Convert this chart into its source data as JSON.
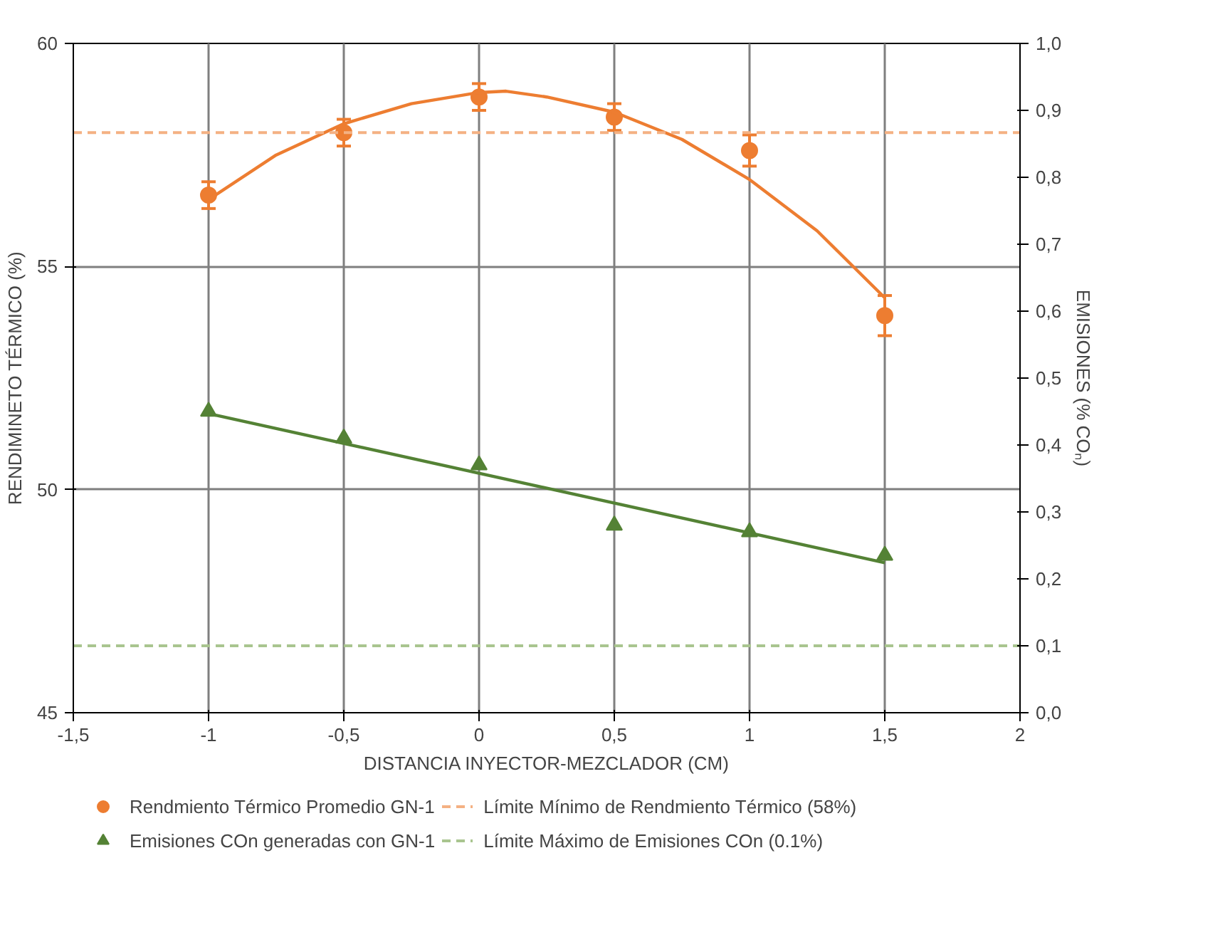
{
  "chart_data": {
    "type": "scatter",
    "xlabel": "DISTANCIA INYECTOR-MEZCLADOR (CM)",
    "ylabel": "RENDIMINETO TÉRMICO (%)",
    "y2label": "EMISIONES (% COₙ)",
    "x": [
      -1,
      -0.5,
      0,
      0.5,
      1,
      1.5
    ],
    "series": [
      {
        "name": "Rendmiento Térmico Promedio GN-1",
        "color": "#ed7d31",
        "marker": "circle",
        "values": [
          56.6,
          58.0,
          58.8,
          58.35,
          57.6,
          53.9
        ],
        "errors": [
          0.3,
          0.3,
          0.3,
          0.3,
          0.35,
          0.45
        ]
      },
      {
        "type": "line",
        "color": "#ed7d31",
        "marker": "none",
        "x": [
          -1,
          -0.75,
          -0.5,
          -0.25,
          0,
          0.1,
          0.25,
          0.5,
          0.75,
          1,
          1.25,
          1.5
        ],
        "values": [
          56.5,
          57.5,
          58.2,
          58.65,
          58.9,
          58.93,
          58.8,
          58.46,
          57.85,
          56.95,
          55.8,
          54.3
        ]
      },
      {
        "name": "Emisiones COn generadas con GN-1",
        "color": "#548235",
        "marker": "triangle",
        "axis": "y2",
        "values": [
          0.45,
          0.41,
          0.37,
          0.28,
          0.27,
          0.235
        ]
      },
      {
        "type": "line",
        "color": "#548235",
        "marker": "none",
        "axis": "y2",
        "x": [
          -1,
          1.5
        ],
        "values": [
          0.447,
          0.224
        ]
      }
    ],
    "ref_lines": [
      {
        "axis": "y",
        "value": 58,
        "label": "Límite Mínimo de Rendmiento Térmico (58%)",
        "color": "#f4b183",
        "line_style": "dashed"
      },
      {
        "axis": "y2",
        "value": 0.1,
        "label": "Límite Máximo de Emisiones COn (0.1%)",
        "color": "#a9c58f",
        "line_style": "dashed"
      }
    ],
    "xlim": [
      -1.5,
      2
    ],
    "xticks": [
      {
        "value": -1.5,
        "label": "-1,5"
      },
      -1,
      {
        "value": -0.5,
        "label": "-0,5"
      },
      0,
      {
        "value": 0.5,
        "label": "0,5"
      },
      1,
      {
        "value": 1.5,
        "label": "1,5"
      },
      2
    ],
    "ylim": [
      45,
      60
    ],
    "yticks": [
      45,
      50,
      55,
      60
    ],
    "y2lim": [
      0,
      1
    ],
    "y2ticks": [
      {
        "value": 0,
        "label": "0,0"
      },
      {
        "value": 0.1,
        "label": "0,1"
      },
      {
        "value": 0.2,
        "label": "0,2"
      },
      {
        "value": 0.3,
        "label": "0,3"
      },
      {
        "value": 0.4,
        "label": "0,4"
      },
      {
        "value": 0.5,
        "label": "0,5"
      },
      {
        "value": 0.6,
        "label": "0,6"
      },
      {
        "value": 0.7,
        "label": "0,7"
      },
      {
        "value": 0.8,
        "label": "0,8"
      },
      {
        "value": 0.9,
        "label": "0,9"
      },
      {
        "value": 1,
        "label": "1,0"
      }
    ],
    "grid": true,
    "legend": "bottom"
  }
}
